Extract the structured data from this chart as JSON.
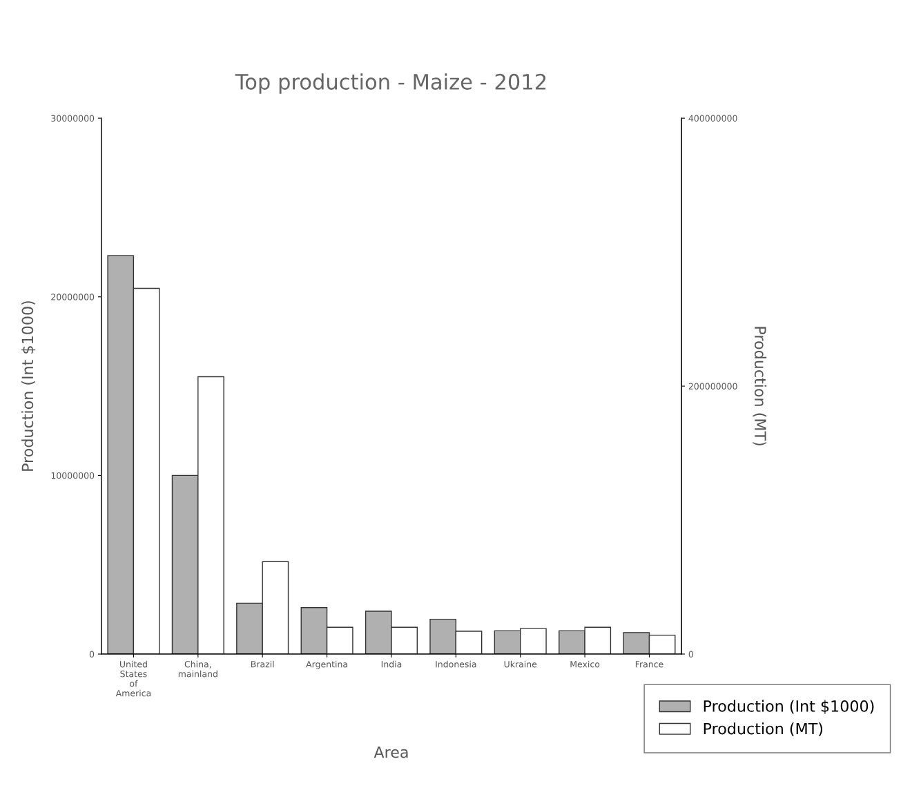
{
  "chart_data": {
    "type": "bar",
    "title": "Top production - Maize - 2012",
    "xlabel": "Area",
    "ylabel": "Production (Int $1000)",
    "y2label": "Production (MT)",
    "categories": [
      "United\nStates\nof\nAmerica",
      "China,\nmainland",
      "Brazil",
      "Argentina",
      "India",
      "Indonesia",
      "Ukraine",
      "Mexico",
      "France"
    ],
    "series": [
      {
        "name": "Production (Int $1000)",
        "color": "#b0b0b0",
        "values": [
          22300000,
          10000000,
          2850000,
          2600000,
          2400000,
          1950000,
          1300000,
          1300000,
          1200000
        ]
      },
      {
        "name": "Production (MT)",
        "color": "#ffffff",
        "axis": "y2",
        "values": [
          273000000,
          207000000,
          69000000,
          20000000,
          20000000,
          17000000,
          19000000,
          20000000,
          14000000
        ]
      }
    ],
    "ylim": [
      0,
      30000000
    ],
    "yticks": [
      0,
      10000000,
      20000000,
      30000000
    ],
    "y2lim": [
      0,
      400000000
    ],
    "y2ticks": [
      0,
      200000000,
      400000000
    ],
    "legend": "bottom right",
    "grid": false
  }
}
